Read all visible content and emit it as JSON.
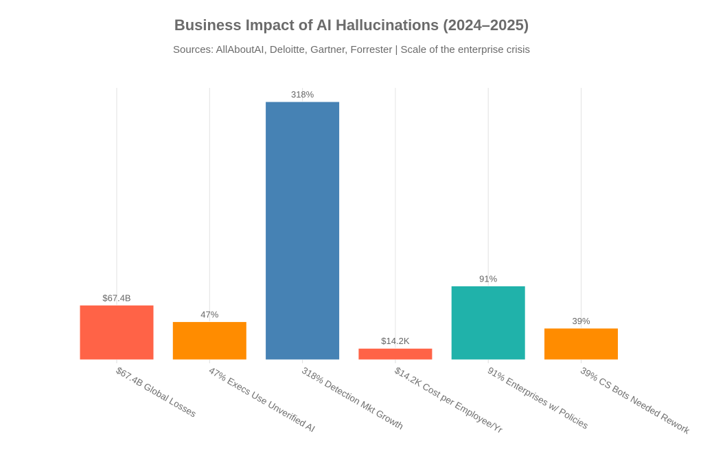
{
  "chart_data": {
    "type": "bar",
    "title": "Business Impact of AI Hallucinations (2024–2025)",
    "subtitle": "Sources: AllAboutAI, Deloitte, Gartner, Forrester | Scale of the enterprise crisis",
    "categories": [
      "$67.4B Global Losses",
      "47% Execs Use Unverified AI",
      "318% Detection Mkt Growth",
      "$14.2K Cost per Employee/Yr",
      "91% Enterprises w/ Policies",
      "39% CS Bots Needed Rework"
    ],
    "values": [
      67.4,
      47,
      318,
      14.2,
      91,
      39
    ],
    "data_labels": [
      "$67.4B",
      "47%",
      "318%",
      "$14.2K",
      "91%",
      "39%"
    ],
    "colors": [
      "#FF6347",
      "#FF8C00",
      "#4682B4",
      "#FF6347",
      "#20B2AA",
      "#FF8C00"
    ],
    "xlabel": "",
    "ylabel": "",
    "ylim": [
      0,
      335
    ],
    "grid": "vertical",
    "yaxis_visible": false
  }
}
